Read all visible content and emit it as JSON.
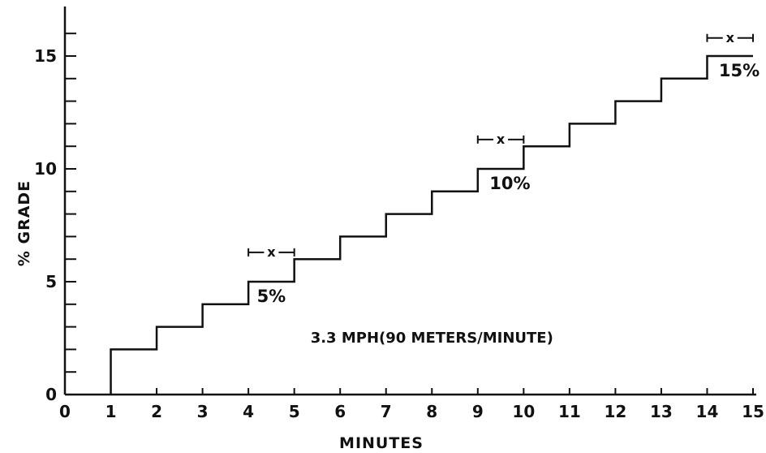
{
  "chart_data": {
    "type": "line",
    "step": true,
    "xlabel": "MINUTES",
    "ylabel": "% GRADE",
    "xlim": [
      0,
      15
    ],
    "ylim": [
      0,
      17
    ],
    "xticks": [
      0,
      1,
      2,
      3,
      4,
      5,
      6,
      7,
      8,
      9,
      10,
      11,
      12,
      13,
      14,
      15
    ],
    "yticks": [
      0,
      5,
      10,
      15
    ],
    "grid": false,
    "series": [
      {
        "x": [
          1,
          2,
          3,
          4,
          5,
          6,
          7,
          8,
          9,
          10,
          11,
          12,
          13,
          14,
          15
        ],
        "y": [
          2,
          3,
          4,
          5,
          6,
          7,
          8,
          9,
          10,
          11,
          12,
          13,
          14,
          15,
          15
        ]
      }
    ],
    "annotations": [
      {
        "text": "5%",
        "x": 4.5,
        "y": 4.1
      },
      {
        "text": "10%",
        "x": 9.7,
        "y": 9.1
      },
      {
        "text": "15%",
        "x": 14.7,
        "y": 14.1
      },
      {
        "text": "3.3 MPH(90 METERS/MINUTE)",
        "x": 8.0,
        "y": 2.3
      }
    ],
    "markers": [
      {
        "x": 4.5,
        "y": 6.3,
        "xerr": 0.5,
        "symbol": "x"
      },
      {
        "x": 9.5,
        "y": 11.3,
        "xerr": 0.5,
        "symbol": "x"
      },
      {
        "x": 14.5,
        "y": 15.8,
        "xerr": 0.5,
        "symbol": "x"
      }
    ]
  }
}
